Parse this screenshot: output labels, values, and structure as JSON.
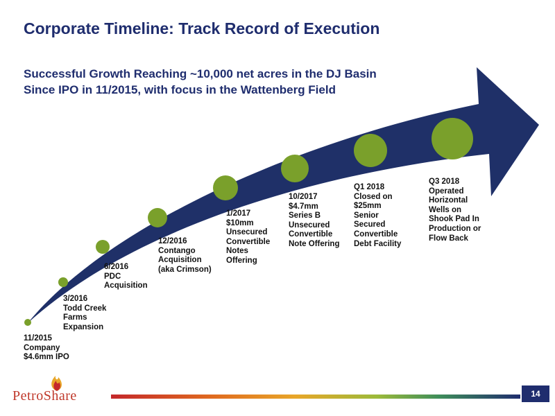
{
  "slide": {
    "title": "Corporate Timeline: Track Record of Execution",
    "subtitle_line1": "Successful Growth Reaching ~10,000 net acres in the DJ Basin",
    "subtitle_line2": "Since IPO in 11/2015, with focus in the Wattenberg Field",
    "page_number": "14"
  },
  "logo": {
    "text": "PetroShare"
  },
  "colors": {
    "navy": "#1f2d6e",
    "arrow": "#1f3068",
    "dot": "#7aa02b"
  },
  "milestones": [
    {
      "lines": [
        "11/2015",
        "Company",
        "$4.6mm IPO"
      ]
    },
    {
      "lines": [
        "3/2016",
        "Todd Creek",
        "Farms",
        "Expansion"
      ]
    },
    {
      "lines": [
        "6/2016",
        "PDC",
        "Acquisition"
      ]
    },
    {
      "lines": [
        "12/2016",
        "Contango",
        "Acquisition",
        "(aka Crimson)"
      ]
    },
    {
      "lines": [
        "1/2017",
        "$10mm",
        "Unsecured",
        "Convertible",
        "Notes",
        "Offering"
      ]
    },
    {
      "lines": [
        "10/2017",
        "$4.7mm",
        "Series B",
        "Unsecured",
        "Convertible",
        "Note Offering"
      ]
    },
    {
      "lines": [
        "Q1 2018",
        "Closed on",
        "$25mm",
        "Senior",
        "Secured",
        "Convertible",
        "Debt Facility"
      ]
    },
    {
      "lines": [
        "Q3 2018",
        "Operated",
        "Horizontal",
        "Wells on",
        "Shook Pad In",
        "Production or",
        "Flow Back"
      ]
    }
  ]
}
